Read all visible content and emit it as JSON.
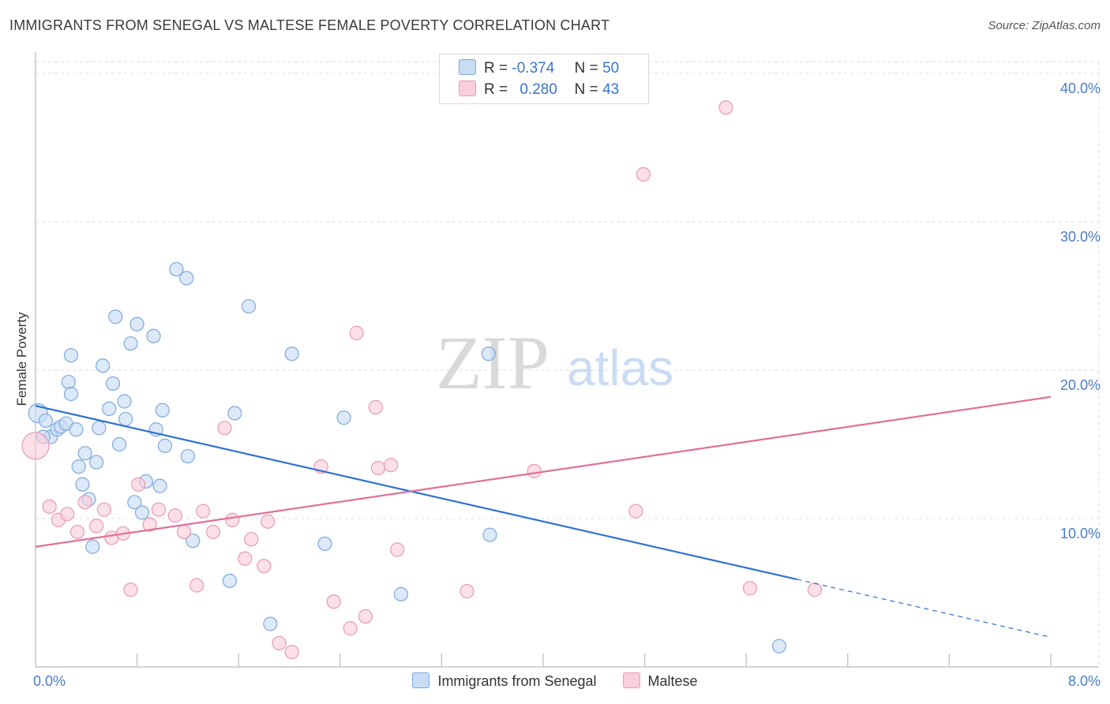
{
  "title": "IMMIGRANTS FROM SENEGAL VS MALTESE FEMALE POVERTY CORRELATION CHART",
  "source": "Source: ZipAtlas.com",
  "watermark": {
    "zip": "ZIP",
    "atlas": "atlas"
  },
  "colors": {
    "senegal_fill": "#c7dcf5",
    "senegal_stroke": "#7ea8de",
    "senegal_line": "#2f72d0",
    "maltese_fill": "#f9cdd9",
    "maltese_stroke": "#e99ab2",
    "maltese_line": "#e0709a",
    "grid": "#dddddd",
    "tick_text": "#4a7cc8"
  },
  "legend": {
    "senegal": {
      "r_label": "R =",
      "r_value": "-0.374",
      "n_label": "N =",
      "n_value": "50"
    },
    "maltese": {
      "r_label": "R =",
      "r_value": "0.280",
      "n_label": "N =",
      "n_value": "43"
    }
  },
  "bottom_legend": {
    "senegal": "Immigrants from Senegal",
    "maltese": "Maltese"
  },
  "chart_data": {
    "type": "scatter",
    "title": "IMMIGRANTS FROM SENEGAL VS MALTESE FEMALE POVERTY CORRELATION CHART",
    "xlabel": "",
    "ylabel": "Female Poverty",
    "xlim": [
      0,
      8
    ],
    "ylim": [
      0,
      40.8
    ],
    "x_tick_labels": {
      "min": "0.0%",
      "max": "8.0%"
    },
    "y_ticks": [
      {
        "value": 10,
        "label": "10.0%"
      },
      {
        "value": 20,
        "label": "20.0%"
      },
      {
        "value": 30,
        "label": "30.0%"
      },
      {
        "value": 40,
        "label": "40.0%"
      }
    ],
    "grid": true,
    "series": [
      {
        "name": "Immigrants from Senegal",
        "color": "#7ea8de",
        "points": [
          [
            0.02,
            17.1
          ],
          [
            0.08,
            16.6
          ],
          [
            0.12,
            15.5
          ],
          [
            0.17,
            16.0
          ],
          [
            0.2,
            16.2
          ],
          [
            0.24,
            16.4
          ],
          [
            0.26,
            19.2
          ],
          [
            0.28,
            21.0
          ],
          [
            0.28,
            18.4
          ],
          [
            0.32,
            16.0
          ],
          [
            0.34,
            13.5
          ],
          [
            0.37,
            12.3
          ],
          [
            0.39,
            14.4
          ],
          [
            0.42,
            11.3
          ],
          [
            0.45,
            8.1
          ],
          [
            0.48,
            13.8
          ],
          [
            0.5,
            16.1
          ],
          [
            0.53,
            20.3
          ],
          [
            0.58,
            17.4
          ],
          [
            0.61,
            19.1
          ],
          [
            0.63,
            23.6
          ],
          [
            0.66,
            15.0
          ],
          [
            0.7,
            17.9
          ],
          [
            0.71,
            16.7
          ],
          [
            0.75,
            21.8
          ],
          [
            0.78,
            11.1
          ],
          [
            0.8,
            23.1
          ],
          [
            0.84,
            10.4
          ],
          [
            0.87,
            12.5
          ],
          [
            0.93,
            22.3
          ],
          [
            0.95,
            16.0
          ],
          [
            0.98,
            12.2
          ],
          [
            1.0,
            17.3
          ],
          [
            1.02,
            14.9
          ],
          [
            1.11,
            26.8
          ],
          [
            1.19,
            26.2
          ],
          [
            1.2,
            14.2
          ],
          [
            1.24,
            8.5
          ],
          [
            1.53,
            5.8
          ],
          [
            1.57,
            17.1
          ],
          [
            1.68,
            24.3
          ],
          [
            1.85,
            2.9
          ],
          [
            2.02,
            21.1
          ],
          [
            2.28,
            8.3
          ],
          [
            2.43,
            16.8
          ],
          [
            2.88,
            4.9
          ],
          [
            3.57,
            21.1
          ],
          [
            3.58,
            8.9
          ],
          [
            5.86,
            1.4
          ],
          [
            0.06,
            15.5
          ]
        ]
      },
      {
        "name": "Maltese",
        "color": "#e99ab2",
        "points": [
          [
            0.0,
            14.9
          ],
          [
            0.11,
            10.8
          ],
          [
            0.18,
            9.9
          ],
          [
            0.25,
            10.3
          ],
          [
            0.33,
            9.1
          ],
          [
            0.39,
            11.1
          ],
          [
            0.48,
            9.5
          ],
          [
            0.54,
            10.6
          ],
          [
            0.6,
            8.7
          ],
          [
            0.69,
            9.0
          ],
          [
            0.75,
            5.2
          ],
          [
            0.81,
            12.3
          ],
          [
            0.9,
            9.6
          ],
          [
            0.97,
            10.6
          ],
          [
            1.1,
            10.2
          ],
          [
            1.17,
            9.1
          ],
          [
            1.27,
            5.5
          ],
          [
            1.32,
            10.5
          ],
          [
            1.4,
            9.1
          ],
          [
            1.49,
            16.1
          ],
          [
            1.55,
            9.9
          ],
          [
            1.65,
            7.3
          ],
          [
            1.7,
            8.6
          ],
          [
            1.8,
            6.8
          ],
          [
            1.83,
            9.8
          ],
          [
            1.92,
            1.6
          ],
          [
            2.02,
            1.0
          ],
          [
            2.25,
            13.5
          ],
          [
            2.35,
            4.4
          ],
          [
            2.48,
            2.6
          ],
          [
            2.53,
            22.5
          ],
          [
            2.6,
            3.4
          ],
          [
            2.68,
            17.5
          ],
          [
            2.7,
            13.4
          ],
          [
            2.8,
            13.6
          ],
          [
            2.85,
            7.9
          ],
          [
            3.4,
            5.1
          ],
          [
            3.93,
            13.2
          ],
          [
            4.73,
            10.5
          ],
          [
            4.79,
            33.2
          ],
          [
            5.44,
            37.7
          ],
          [
            5.63,
            5.3
          ],
          [
            6.14,
            5.2
          ]
        ]
      }
    ],
    "trend_lines": [
      {
        "series": "Immigrants from Senegal",
        "x": [
          0.0,
          6.0
        ],
        "y": [
          17.6,
          5.9
        ],
        "dashed_extension": {
          "x": [
            6.0,
            8.0
          ],
          "y": [
            5.9,
            2.0
          ]
        }
      },
      {
        "series": "Maltese",
        "x": [
          0.0,
          8.0
        ],
        "y": [
          8.1,
          18.2
        ]
      }
    ]
  }
}
